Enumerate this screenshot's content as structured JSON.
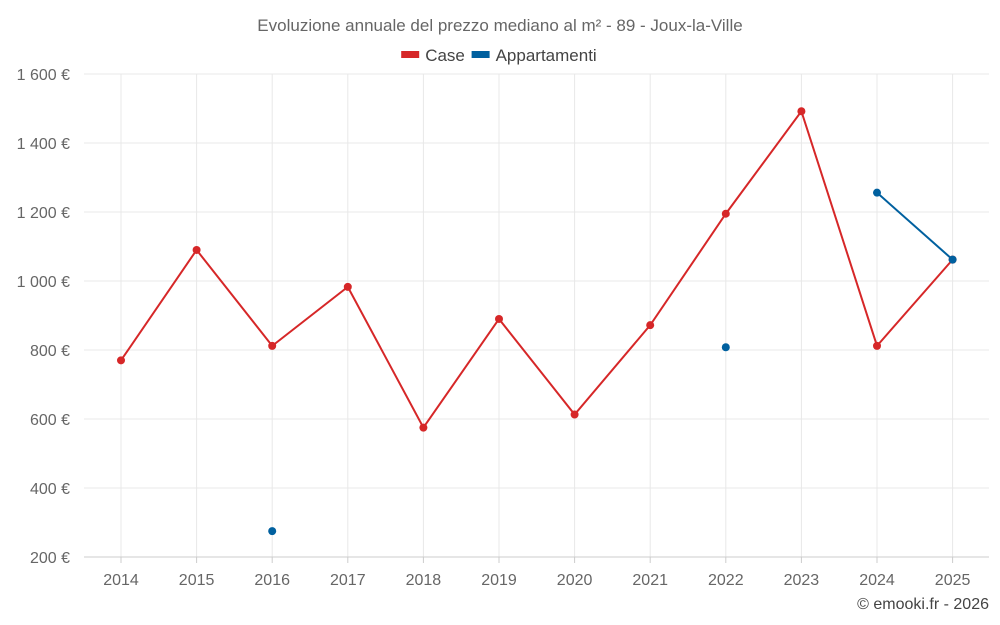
{
  "chart_data": {
    "type": "line",
    "title": "Evoluzione annuale del prezzo mediano al m² - 89 - Joux-la-Ville",
    "x": [
      2014,
      2015,
      2016,
      2017,
      2018,
      2019,
      2020,
      2021,
      2022,
      2023,
      2024,
      2025
    ],
    "x_tick_labels": [
      "2014",
      "2015",
      "2016",
      "2017",
      "2018",
      "2019",
      "2020",
      "2021",
      "2022",
      "2023",
      "2024",
      "2025"
    ],
    "ylim": [
      200,
      1600
    ],
    "y_ticks": [
      200,
      400,
      600,
      800,
      1000,
      1200,
      1400,
      1600
    ],
    "y_tick_labels": [
      "200 €",
      "400 €",
      "600 €",
      "800 €",
      "1 000 €",
      "1 200 €",
      "1 400 €",
      "1 600 €"
    ],
    "grid": true,
    "legend_position": "top-center",
    "series": [
      {
        "name": "Case",
        "color": "#d62728",
        "values": [
          770,
          1090,
          812,
          983,
          575,
          890,
          613,
          872,
          1195,
          1492,
          812,
          1062
        ]
      },
      {
        "name": "Appartamenti",
        "color": "#00609f",
        "values": [
          null,
          null,
          275,
          null,
          null,
          null,
          null,
          null,
          808,
          null,
          1256,
          1062
        ]
      }
    ]
  },
  "credit": "© emooki.fr - 2026"
}
